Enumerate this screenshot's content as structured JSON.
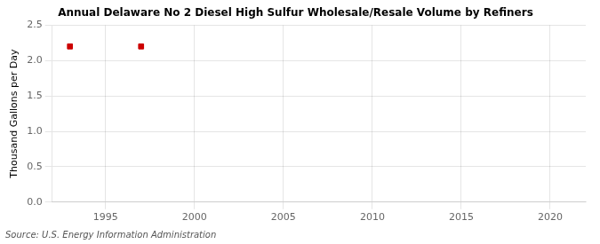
{
  "chart_data": {
    "type": "scatter",
    "title": "Annual Delaware No 2 Diesel High Sulfur Wholesale/Resale Volume by Refiners",
    "ylabel": "Thousand Gallons per Day",
    "source": "Source: U.S. Energy Information Administration",
    "x": [
      1993,
      1997
    ],
    "values": [
      2.2,
      2.2
    ],
    "color": "#cc0000",
    "marker": "square",
    "xlim": [
      1992,
      2022
    ],
    "xticks": [
      1995,
      2000,
      2005,
      2010,
      2015,
      2020
    ],
    "ylim": [
      0.0,
      2.5
    ],
    "yticks": [
      {
        "value": 0,
        "label": "0.0"
      },
      0.5,
      {
        "value": 1,
        "label": "1.0"
      },
      1.5,
      {
        "value": 2,
        "label": "2.0"
      },
      2.5
    ],
    "grid": true
  }
}
